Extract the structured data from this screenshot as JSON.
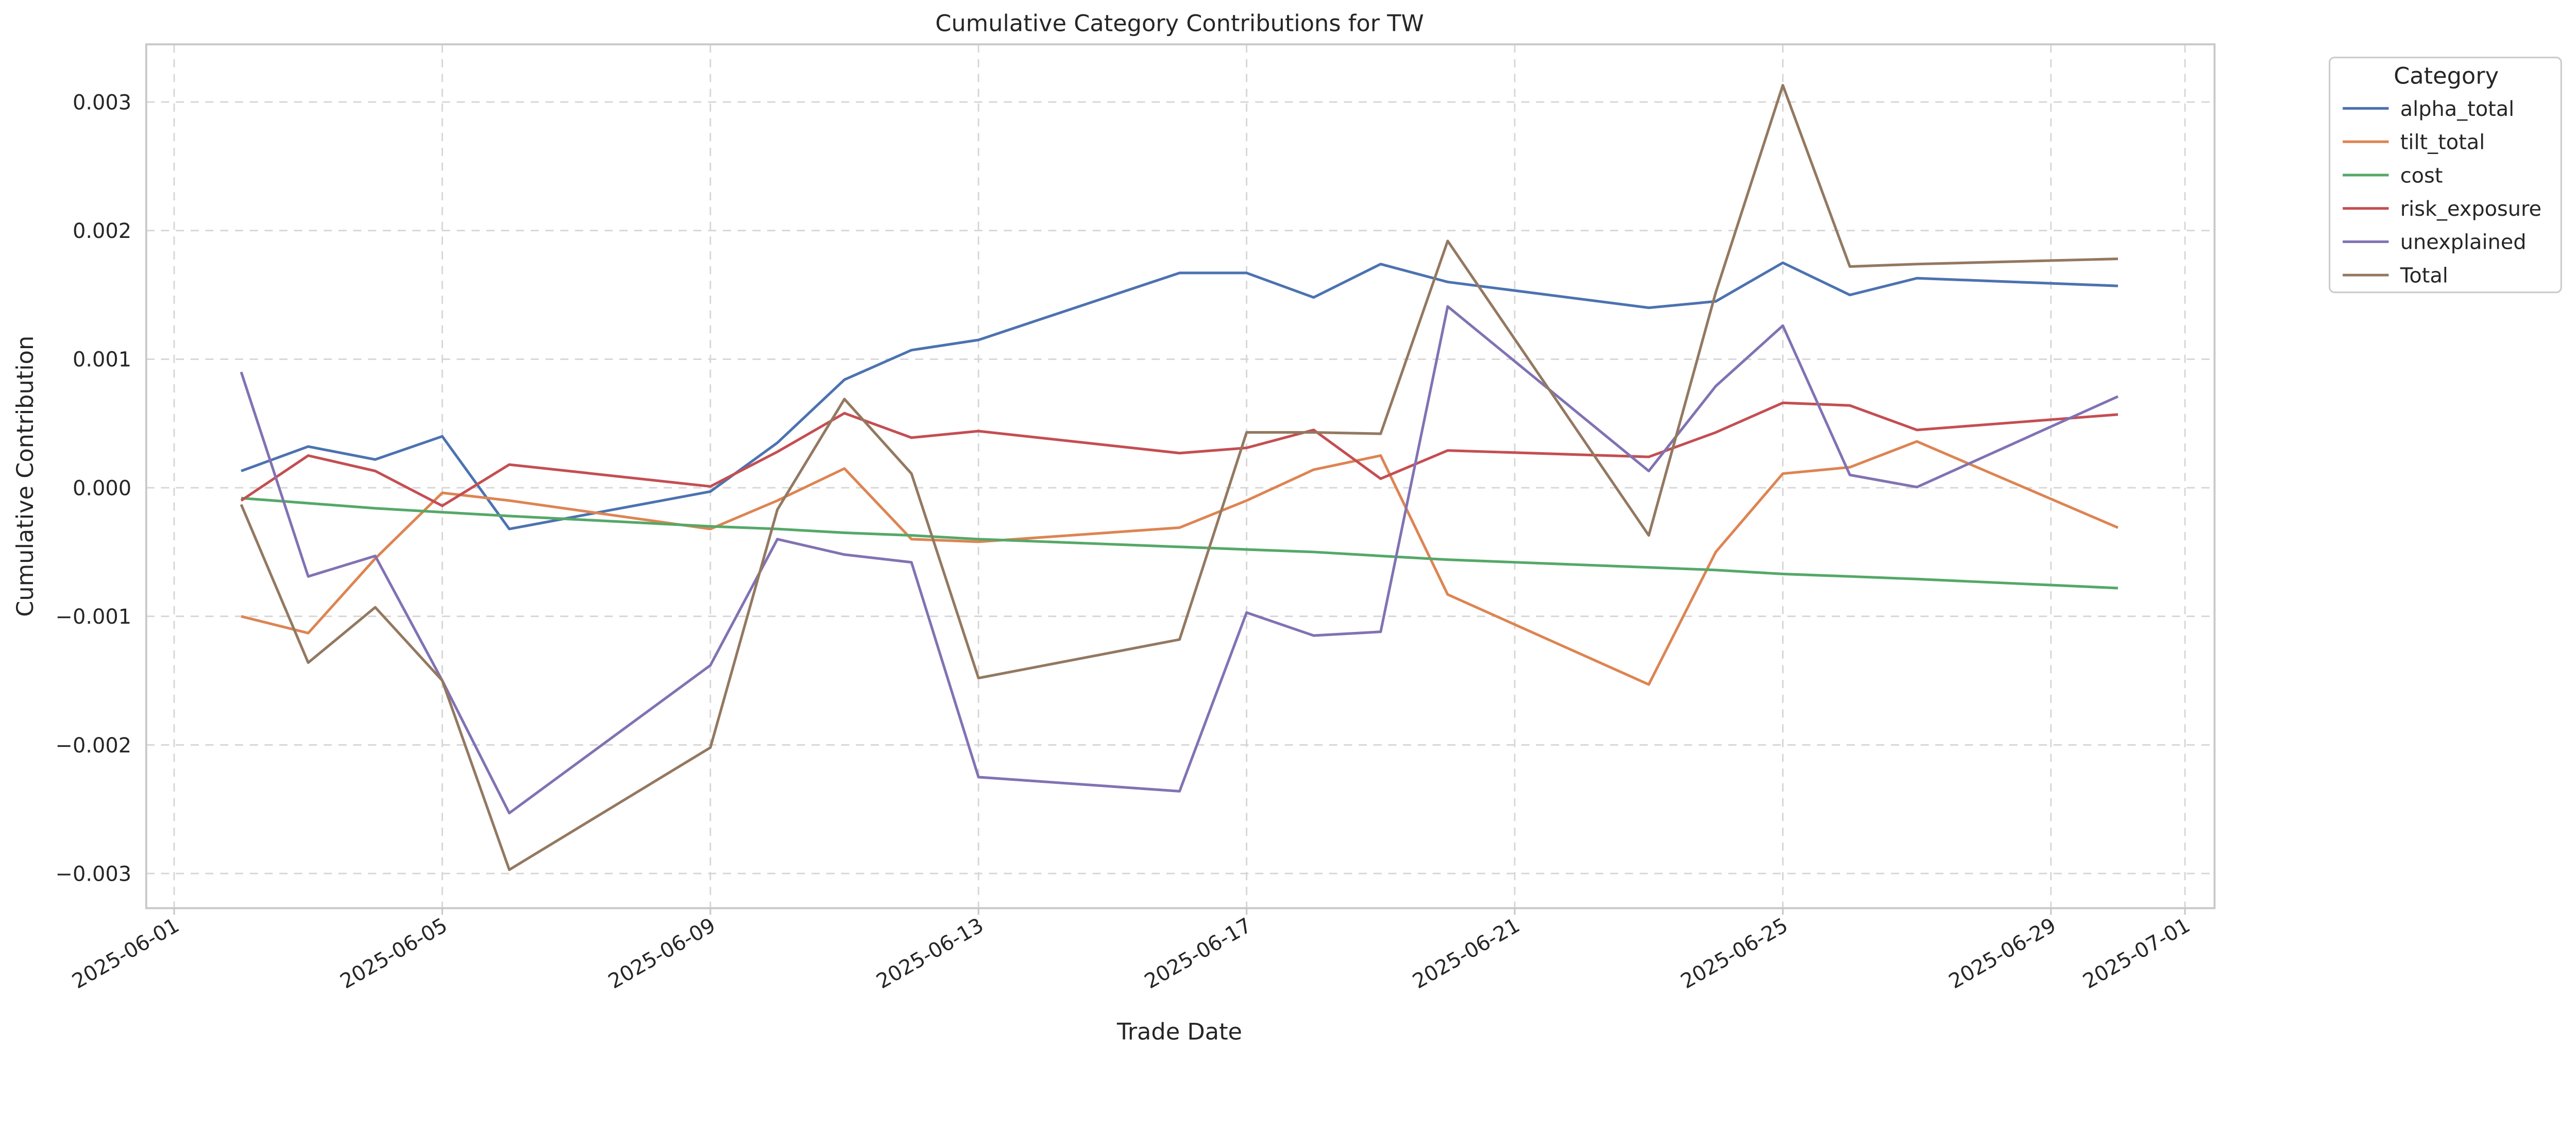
{
  "chart_data": {
    "type": "line",
    "title": "Cumulative Category Contributions for TW",
    "xlabel": "Trade Date",
    "ylabel": "Cumulative Contribution",
    "ylim": [
      -0.00328,
      0.00345
    ],
    "xlim": [
      "2025-05-31T00:00",
      "2025-07-01T10:00"
    ],
    "grid": true,
    "legend_title": "Category",
    "legend_placement": "outside-top-right",
    "xticks": [
      "2025-06-01",
      "2025-06-05",
      "2025-06-09",
      "2025-06-13",
      "2025-06-17",
      "2025-06-21",
      "2025-06-25",
      "2025-06-29",
      "2025-07-01"
    ],
    "yticks": [
      "−0.003",
      "−0.002",
      "−0.001",
      "0.000",
      "0.001",
      "0.002",
      "0.003"
    ],
    "ytick_values": [
      -0.003,
      -0.002,
      -0.001,
      0,
      0.001,
      0.002,
      0.003
    ],
    "x": [
      "2025-06-02",
      "2025-06-03",
      "2025-06-04",
      "2025-06-05",
      "2025-06-06",
      "2025-06-09",
      "2025-06-10",
      "2025-06-11",
      "2025-06-12",
      "2025-06-13",
      "2025-06-16",
      "2025-06-17",
      "2025-06-18",
      "2025-06-19",
      "2025-06-20",
      "2025-06-23",
      "2025-06-24",
      "2025-06-25",
      "2025-06-26",
      "2025-06-27",
      "2025-06-30"
    ],
    "series": [
      {
        "name": "alpha_total",
        "color": "#4c72b0",
        "values": [
          0.00013,
          0.00032,
          0.00022,
          0.0004,
          -0.00032,
          -3e-05,
          0.00035,
          0.00084,
          0.00107,
          0.00115,
          0.00167,
          0.00167,
          0.00148,
          0.00174,
          0.0016,
          0.0014,
          0.00145,
          0.00175,
          0.0015,
          0.00163,
          0.00157
        ]
      },
      {
        "name": "tilt_total",
        "color": "#dd8452",
        "values": [
          -0.001,
          -0.00113,
          -0.00055,
          -4e-05,
          -0.0001,
          -0.00032,
          -0.0001,
          0.00015,
          -0.0004,
          -0.00042,
          -0.00031,
          -0.0001,
          0.00014,
          0.00025,
          -0.00083,
          -0.00153,
          -0.0005,
          0.00011,
          0.00016,
          0.00036,
          -0.00031
        ]
      },
      {
        "name": "cost",
        "color": "#55a868",
        "values": [
          -8e-05,
          -0.00012,
          -0.00016,
          -0.00019,
          -0.00022,
          -0.0003,
          -0.00032,
          -0.00035,
          -0.00037,
          -0.0004,
          -0.00046,
          -0.00048,
          -0.0005,
          -0.00053,
          -0.00056,
          -0.00062,
          -0.00064,
          -0.00067,
          -0.00069,
          -0.00071,
          -0.00078
        ]
      },
      {
        "name": "risk_exposure",
        "color": "#c44e52",
        "values": [
          -0.0001,
          0.00025,
          0.00013,
          -0.00014,
          0.00018,
          1e-05,
          0.00028,
          0.00058,
          0.00039,
          0.00044,
          0.00027,
          0.00031,
          0.00045,
          7e-05,
          0.00029,
          0.00024,
          0.00043,
          0.00066,
          0.00064,
          0.00045,
          0.00057
        ]
      },
      {
        "name": "unexplained",
        "color": "#8172b3",
        "values": [
          0.0009,
          -0.00069,
          -0.00053,
          -0.0015,
          -0.00253,
          -0.00138,
          -0.0004,
          -0.00052,
          -0.00058,
          -0.00225,
          -0.00236,
          -0.00097,
          -0.00115,
          -0.00112,
          0.00141,
          0.00013,
          0.00079,
          0.00126,
          0.0001,
          5e-06,
          0.00071
        ]
      },
      {
        "name": "Total",
        "color": "#937860",
        "values": [
          -0.00013,
          -0.00136,
          -0.00093,
          -0.0015,
          -0.00297,
          -0.00202,
          -0.00017,
          0.00069,
          0.00011,
          -0.00148,
          -0.00118,
          0.00043,
          0.00043,
          0.00042,
          0.00192,
          -0.00037,
          0.00152,
          0.00313,
          0.00172,
          0.00174,
          0.00178
        ]
      }
    ]
  }
}
